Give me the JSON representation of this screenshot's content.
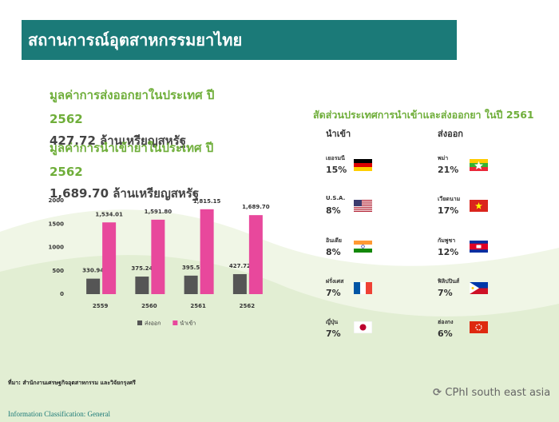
{
  "header": {
    "title": "สถานการณ์อุตสาหกรรมยาไทย"
  },
  "left": {
    "export_title": "มูลค่าการส่งออกยาในประเทศ ปี 2562",
    "export_value": "427.72 ล้านเหรียญสหรัฐ",
    "import_title": "มูลค่าการนำเข้ายาในประเทศ ปี 2562",
    "import_value": "1,689.70 ล้านเหรียญสหรัฐ"
  },
  "chart_data": {
    "type": "bar",
    "categories": [
      "2559",
      "2560",
      "2561",
      "2562"
    ],
    "series": [
      {
        "name": "ส่งออก",
        "color": "#555555",
        "values": [
          330.94,
          375.24,
          395.5,
          427.72
        ],
        "value_labels": [
          "330.94",
          "375.24",
          "395.5",
          "427.72"
        ]
      },
      {
        "name": "นำเข้า",
        "color": "#e8489c",
        "values": [
          1534.01,
          1591.8,
          1815.15,
          1689.7
        ],
        "value_labels": [
          "1,534.01",
          "1,591.80",
          "1,815.15",
          "1,689.70"
        ]
      }
    ],
    "ylim": [
      0,
      2000
    ],
    "yticks": [
      0,
      500,
      1000,
      1500,
      2000
    ],
    "grid": false,
    "legend": "bottom"
  },
  "share": {
    "title": "สัดส่วนประเทศการนำเข้าและส่งออกยา ในปี 2561",
    "import_header": "นำเข้า",
    "export_header": "ส่งออก",
    "imports": [
      {
        "country": "เยอรมนี",
        "share": "15%"
      },
      {
        "country": "U.S.A.",
        "share": "8%"
      },
      {
        "country": "อินเดีย",
        "share": "8%"
      },
      {
        "country": "ฝรั่งเศส",
        "share": "7%"
      },
      {
        "country": "ญี่ปุ่น",
        "share": "7%"
      }
    ],
    "exports": [
      {
        "country": "พม่า",
        "share": "21%"
      },
      {
        "country": "เวียดนาม",
        "share": "17%"
      },
      {
        "country": "กัมพูชา",
        "share": "12%"
      },
      {
        "country": "ฟิลิปปินส์",
        "share": "7%"
      },
      {
        "country": "ฮ่องกง",
        "share": "6%"
      }
    ]
  },
  "footer": {
    "source": "ที่มา: สำนักงานเศรษฐกิจอุตสาหกรรม และวิจัยกรุงศรี",
    "logo": "CPhI south east asia",
    "classification": "Information Classification: General"
  }
}
